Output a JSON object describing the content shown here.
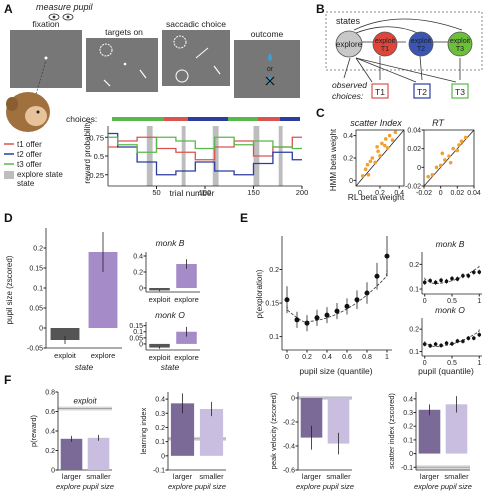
{
  "panels": {
    "A": {
      "letter": "A",
      "measure_pupil": "measure pupil",
      "screens": [
        "fixation",
        "targets on",
        "saccadic choice",
        "outcome"
      ],
      "outcome_or": "or",
      "choices_label": "choices:",
      "legend": [
        "t1 offer",
        "t2 offer",
        "t3 offer",
        "explore state"
      ],
      "legend_colors": [
        "#d9534f",
        "#2b3d9e",
        "#59b84a",
        "#bdbdbd"
      ],
      "ylabel": "reward probability",
      "yticks": [
        "0.75",
        "0.5",
        "0.25"
      ],
      "xticks": [
        "50",
        "100",
        "150",
        "200"
      ],
      "xlabel": "trial number"
    },
    "B": {
      "letter": "B",
      "states_label": "states",
      "nodes": [
        "explore",
        "exploit T1",
        "exploit T2",
        "exploit T3"
      ],
      "node_colors": [
        "#c8c8c8",
        "#e0453a",
        "#3a55b4",
        "#6cbf3b"
      ],
      "observed": "observed choices:",
      "targets": [
        "T1",
        "T2",
        "T3"
      ]
    },
    "C": {
      "letter": "C",
      "titles": [
        "scatter Index",
        "RT"
      ],
      "ylabel": "HMM beta weight",
      "xlabel": "RL beta weight",
      "ticks_left": [
        "0.4",
        "0.2",
        "0",
        "0.2",
        "0.4"
      ],
      "ticks_right_x": [
        "-0.02",
        "0",
        "0.02",
        "0.04"
      ],
      "ticks_right_y": [
        "0.04",
        "0.02",
        "0",
        "-0.02"
      ]
    },
    "D": {
      "letter": "D",
      "ylabel": "pupil size (zscored)",
      "yticks": [
        "0.2",
        "0.15",
        "0.1",
        "0.05",
        "0",
        "-0.05"
      ],
      "bars": [
        "exploit",
        "explore"
      ],
      "xlabel": "state",
      "sub_titles": [
        "monk B",
        "monk O"
      ],
      "bar_colors": [
        "#555555",
        "#a58bc7"
      ]
    },
    "E": {
      "letter": "E",
      "ylabel": "p(exploration)",
      "yticks": [
        "0.2",
        "0.15",
        "0.1"
      ],
      "xticks": [
        "0",
        "0.2",
        "0.4",
        "0.6",
        "0.8",
        "1"
      ],
      "xlabel": "pupil size (quantile)",
      "sub_titles": [
        "monk B",
        "monk O"
      ],
      "sub_xticks": [
        "0",
        "0.5",
        "1"
      ],
      "sub_xlabel": "pupil (quantile)"
    },
    "F": {
      "letter": "F",
      "panels": [
        {
          "ylabel": "p(reward)",
          "yticks": [
            "0.8",
            "0.6",
            "0.4",
            "0.2",
            "0"
          ],
          "note": "exploit"
        },
        {
          "ylabel": "learning index",
          "yticks": [
            "0.4",
            "0.3",
            "0.2",
            "0.1",
            "0",
            "-0.1"
          ],
          "note": ""
        },
        {
          "ylabel": "peak velocity (zscored)",
          "yticks": [
            "0",
            "-0.2",
            "-0.4",
            "-0.6"
          ],
          "note": ""
        },
        {
          "ylabel": "scatter index (zscored)",
          "yticks": [
            "0.4",
            "0.3",
            "0.2",
            "0.1",
            "0",
            "-0.1"
          ],
          "note": ""
        }
      ],
      "bars": [
        "larger",
        "smaller"
      ],
      "xlabel": "explore pupil size",
      "bar_colors": [
        "#7b6a98",
        "#c9bde0"
      ]
    }
  },
  "chart_data": [
    {
      "type": "line",
      "x": [
        0,
        20,
        40,
        60,
        80,
        100,
        120,
        140,
        160,
        180,
        200
      ],
      "series": [
        {
          "name": "t1 offer",
          "values": [
            0.62,
            0.7,
            0.75,
            0.6,
            0.55,
            0.45,
            0.62,
            0.7,
            0.5,
            0.62,
            0.75
          ]
        },
        {
          "name": "t2 offer",
          "values": [
            0.8,
            0.62,
            0.42,
            0.25,
            0.3,
            0.42,
            0.3,
            0.25,
            0.4,
            0.55,
            0.45
          ]
        },
        {
          "name": "t3 offer",
          "values": [
            0.75,
            0.65,
            0.55,
            0.75,
            0.7,
            0.6,
            0.75,
            0.65,
            0.7,
            0.62,
            0.6
          ]
        }
      ],
      "xlabel": "trial number",
      "ylabel": "reward probability",
      "xlim": [
        0,
        200
      ],
      "ylim": [
        0.1,
        0.9
      ]
    },
    {
      "type": "scatter",
      "title": "scatter Index",
      "x": [
        0.02,
        0.05,
        0.08,
        0.1,
        0.12,
        0.15,
        0.18,
        0.2,
        0.22,
        0.25,
        0.28,
        0.3,
        0.33,
        0.36,
        0.07,
        0.17,
        0.26
      ],
      "y": [
        0.04,
        0.1,
        0.05,
        0.17,
        0.2,
        0.16,
        0.26,
        0.22,
        0.33,
        0.31,
        0.29,
        0.4,
        0.36,
        0.43,
        0.14,
        0.3,
        0.37
      ],
      "xlabel": "RL beta weight",
      "ylabel": "HMM beta weight"
    },
    {
      "type": "scatter",
      "title": "RT",
      "x": [
        -0.015,
        -0.01,
        -0.005,
        0,
        0.005,
        0.01,
        0.015,
        0.02,
        0.025,
        0.03,
        0.012,
        0.002,
        0.022
      ],
      "y": [
        -0.01,
        -0.008,
        0.0,
        0.002,
        0.008,
        0.012,
        0.02,
        0.018,
        0.028,
        0.032,
        0.005,
        0.015,
        0.024
      ],
      "xlabel": "RL beta weight"
    },
    {
      "type": "bar",
      "categories": [
        "exploit",
        "explore"
      ],
      "values": [
        -0.03,
        0.19
      ],
      "errors": [
        0.01,
        0.05
      ],
      "xlabel": "state",
      "ylabel": "pupil size (zscored)",
      "ylim": [
        -0.05,
        0.25
      ]
    },
    {
      "type": "bar",
      "title": "monk B",
      "categories": [
        "exploit",
        "explore"
      ],
      "values": [
        -0.03,
        0.3
      ],
      "errors": [
        0.01,
        0.06
      ]
    },
    {
      "type": "bar",
      "title": "monk O",
      "categories": [
        "exploit",
        "explore"
      ],
      "values": [
        -0.03,
        0.1
      ],
      "errors": [
        0.01,
        0.04
      ],
      "xlabel": "state"
    },
    {
      "type": "scatter",
      "x": [
        0,
        0.1,
        0.2,
        0.3,
        0.4,
        0.5,
        0.6,
        0.7,
        0.8,
        0.9,
        1
      ],
      "y": [
        0.155,
        0.125,
        0.12,
        0.128,
        0.132,
        0.138,
        0.145,
        0.155,
        0.165,
        0.19,
        0.22
      ],
      "errors": [
        0.02,
        0.012,
        0.012,
        0.012,
        0.012,
        0.012,
        0.012,
        0.014,
        0.016,
        0.02,
        0.03
      ],
      "xlabel": "pupil size (quantile)",
      "ylabel": "p(exploration)",
      "ylim": [
        0.08,
        0.25
      ]
    },
    {
      "type": "bar",
      "categories": [
        "larger",
        "smaller"
      ],
      "values": [
        0.32,
        0.33
      ],
      "errors": [
        0.03,
        0.03
      ],
      "ylabel": "p(reward)",
      "reference": {
        "label": "exploit",
        "value": 0.63
      },
      "ylim": [
        0,
        0.8
      ]
    },
    {
      "type": "bar",
      "categories": [
        "larger",
        "smaller"
      ],
      "values": [
        0.37,
        0.33
      ],
      "errors": [
        0.07,
        0.05
      ],
      "ylabel": "learning index",
      "reference": {
        "value": 0.12
      },
      "ylim": [
        -0.1,
        0.45
      ]
    },
    {
      "type": "bar",
      "categories": [
        "larger",
        "smaller"
      ],
      "values": [
        -0.33,
        -0.38
      ],
      "errors": [
        0.1,
        0.09
      ],
      "ylabel": "peak velocity (zscored)",
      "reference": {
        "value": 0.0
      },
      "ylim": [
        -0.6,
        0.05
      ]
    },
    {
      "type": "bar",
      "categories": [
        "larger",
        "smaller"
      ],
      "values": [
        0.32,
        0.36
      ],
      "errors": [
        0.04,
        0.06
      ],
      "ylabel": "scatter index (zscored)",
      "reference": {
        "value": -0.1
      },
      "ylim": [
        -0.12,
        0.45
      ]
    }
  ]
}
